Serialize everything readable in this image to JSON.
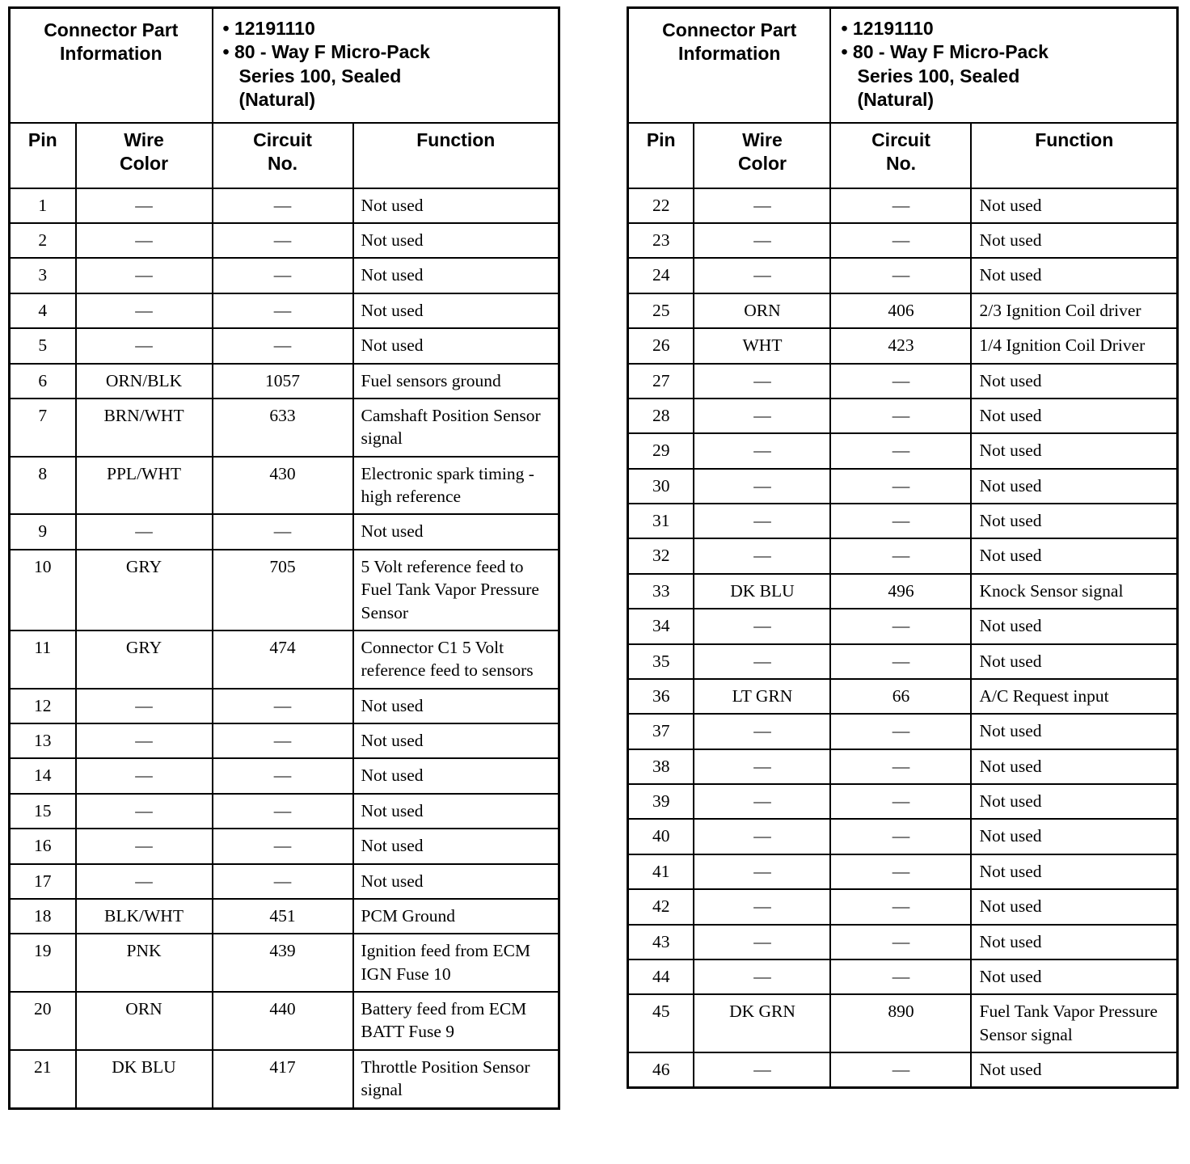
{
  "tables": [
    {
      "part_info_label": "Connector Part Information",
      "part_info_items": [
        "• 12191110",
        "• 80 - Way F Micro-Pack\nSeries 100, Sealed\n(Natural)"
      ],
      "columns": [
        "Pin",
        "Wire\nColor",
        "Circuit\nNo.",
        "Function"
      ],
      "rows": [
        [
          "1",
          "—",
          "—",
          "Not used"
        ],
        [
          "2",
          "—",
          "—",
          "Not used"
        ],
        [
          "3",
          "—",
          "—",
          "Not used"
        ],
        [
          "4",
          "—",
          "—",
          "Not used"
        ],
        [
          "5",
          "—",
          "—",
          "Not used"
        ],
        [
          "6",
          "ORN/BLK",
          "1057",
          "Fuel sensors ground"
        ],
        [
          "7",
          "BRN/WHT",
          "633",
          "Camshaft Position Sensor signal"
        ],
        [
          "8",
          "PPL/WHT",
          "430",
          "Electronic spark timing - high reference"
        ],
        [
          "9",
          "—",
          "—",
          "Not used"
        ],
        [
          "10",
          "GRY",
          "705",
          "5 Volt reference feed to Fuel Tank Vapor Pressure Sensor"
        ],
        [
          "11",
          "GRY",
          "474",
          "Connector C1 5 Volt reference feed to sensors"
        ],
        [
          "12",
          "—",
          "—",
          "Not used"
        ],
        [
          "13",
          "—",
          "—",
          "Not used"
        ],
        [
          "14",
          "—",
          "—",
          "Not used"
        ],
        [
          "15",
          "—",
          "—",
          "Not used"
        ],
        [
          "16",
          "—",
          "—",
          "Not used"
        ],
        [
          "17",
          "—",
          "—",
          "Not used"
        ],
        [
          "18",
          "BLK/WHT",
          "451",
          "PCM Ground"
        ],
        [
          "19",
          "PNK",
          "439",
          "Ignition feed from ECM IGN Fuse 10"
        ],
        [
          "20",
          "ORN",
          "440",
          "Battery feed from ECM BATT Fuse 9"
        ],
        [
          "21",
          "DK BLU",
          "417",
          "Throttle Position Sensor signal"
        ]
      ]
    },
    {
      "part_info_label": "Connector Part Information",
      "part_info_items": [
        "• 12191110",
        "• 80 - Way F Micro-Pack\nSeries 100, Sealed\n(Natural)"
      ],
      "columns": [
        "Pin",
        "Wire\nColor",
        "Circuit\nNo.",
        "Function"
      ],
      "rows": [
        [
          "22",
          "—",
          "—",
          "Not used"
        ],
        [
          "23",
          "—",
          "—",
          "Not used"
        ],
        [
          "24",
          "—",
          "—",
          "Not used"
        ],
        [
          "25",
          "ORN",
          "406",
          "2/3 Ignition Coil driver"
        ],
        [
          "26",
          "WHT",
          "423",
          "1/4 Ignition Coil Driver"
        ],
        [
          "27",
          "—",
          "—",
          "Not used"
        ],
        [
          "28",
          "—",
          "—",
          "Not used"
        ],
        [
          "29",
          "—",
          "—",
          "Not used"
        ],
        [
          "30",
          "—",
          "—",
          "Not used"
        ],
        [
          "31",
          "—",
          "—",
          "Not used"
        ],
        [
          "32",
          "—",
          "—",
          "Not used"
        ],
        [
          "33",
          "DK BLU",
          "496",
          "Knock Sensor signal"
        ],
        [
          "34",
          "—",
          "—",
          "Not used"
        ],
        [
          "35",
          "—",
          "—",
          "Not used"
        ],
        [
          "36",
          "LT GRN",
          "66",
          "A/C Request input"
        ],
        [
          "37",
          "—",
          "—",
          "Not used"
        ],
        [
          "38",
          "—",
          "—",
          "Not used"
        ],
        [
          "39",
          "—",
          "—",
          "Not used"
        ],
        [
          "40",
          "—",
          "—",
          "Not used"
        ],
        [
          "41",
          "—",
          "—",
          "Not used"
        ],
        [
          "42",
          "—",
          "—",
          "Not used"
        ],
        [
          "43",
          "—",
          "—",
          "Not used"
        ],
        [
          "44",
          "—",
          "—",
          "Not used"
        ],
        [
          "45",
          "DK GRN",
          "890",
          "Fuel Tank Vapor Pressure Sensor signal"
        ],
        [
          "46",
          "—",
          "—",
          "Not used"
        ]
      ]
    }
  ]
}
